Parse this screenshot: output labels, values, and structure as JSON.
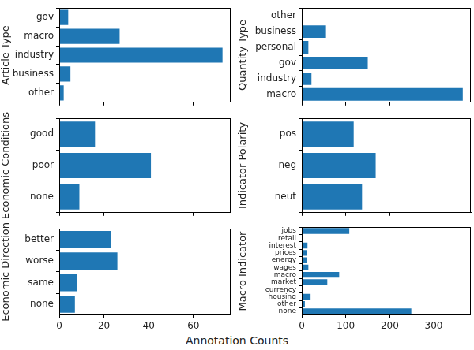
{
  "xlabel": "Annotation Counts",
  "chart_data": [
    {
      "type": "bar",
      "orientation": "horizontal",
      "ylabel": "Article Type",
      "categories": [
        "gov",
        "macro",
        "industry",
        "business",
        "other"
      ],
      "values": [
        4,
        27,
        73,
        5,
        2
      ],
      "color": "#1f77b4",
      "xlim": [
        0,
        76.65
      ],
      "xticks": [
        0,
        20,
        40,
        60
      ],
      "grid": false,
      "tick_labels": "y"
    },
    {
      "type": "bar",
      "orientation": "horizontal",
      "ylabel": "Quantity Type",
      "categories": [
        "other",
        "business",
        "personal",
        "gov",
        "industry",
        "macro"
      ],
      "values": [
        0,
        55,
        15,
        150,
        22,
        366
      ],
      "color": "#1f77b4",
      "xlim": [
        0,
        384.3
      ],
      "xticks": [
        0,
        100,
        200,
        300
      ],
      "grid": false,
      "tick_labels": "y"
    },
    {
      "type": "bar",
      "orientation": "horizontal",
      "ylabel": "Economic Conditions",
      "categories": [
        "good",
        "poor",
        "none"
      ],
      "values": [
        16,
        41,
        9
      ],
      "color": "#1f77b4",
      "xlim": [
        0,
        76.65
      ],
      "xticks": [
        0,
        20,
        40,
        60
      ],
      "grid": false,
      "tick_labels": "y"
    },
    {
      "type": "bar",
      "orientation": "horizontal",
      "ylabel": "Indicator Polarity",
      "categories": [
        "pos",
        "neg",
        "neut"
      ],
      "values": [
        118,
        168,
        137
      ],
      "color": "#1f77b4",
      "xlim": [
        0,
        384.3
      ],
      "xticks": [
        0,
        100,
        200,
        300
      ],
      "grid": false,
      "tick_labels": "y"
    },
    {
      "type": "bar",
      "orientation": "horizontal",
      "ylabel": "Economic Direction",
      "categories": [
        "better",
        "worse",
        "same",
        "none"
      ],
      "values": [
        23,
        26,
        8,
        7
      ],
      "color": "#1f77b4",
      "xlim": [
        0,
        76.65
      ],
      "xticks": [
        0,
        20,
        40,
        60
      ],
      "grid": false,
      "tick_labels": true
    },
    {
      "type": "bar",
      "orientation": "horizontal",
      "ylabel": "Macro Indicator",
      "categories": [
        "jobs",
        "retail",
        "interest",
        "prices",
        "energy",
        "wages",
        "macro",
        "market",
        "currency",
        "housing",
        "other",
        "none"
      ],
      "values": [
        108,
        1,
        13,
        12,
        11,
        15,
        85,
        58,
        3,
        20,
        7,
        249
      ],
      "color": "#1f77b4",
      "xlim": [
        0,
        384.3
      ],
      "xticks": [
        0,
        100,
        200,
        300
      ],
      "grid": false,
      "tick_labels": true
    }
  ]
}
